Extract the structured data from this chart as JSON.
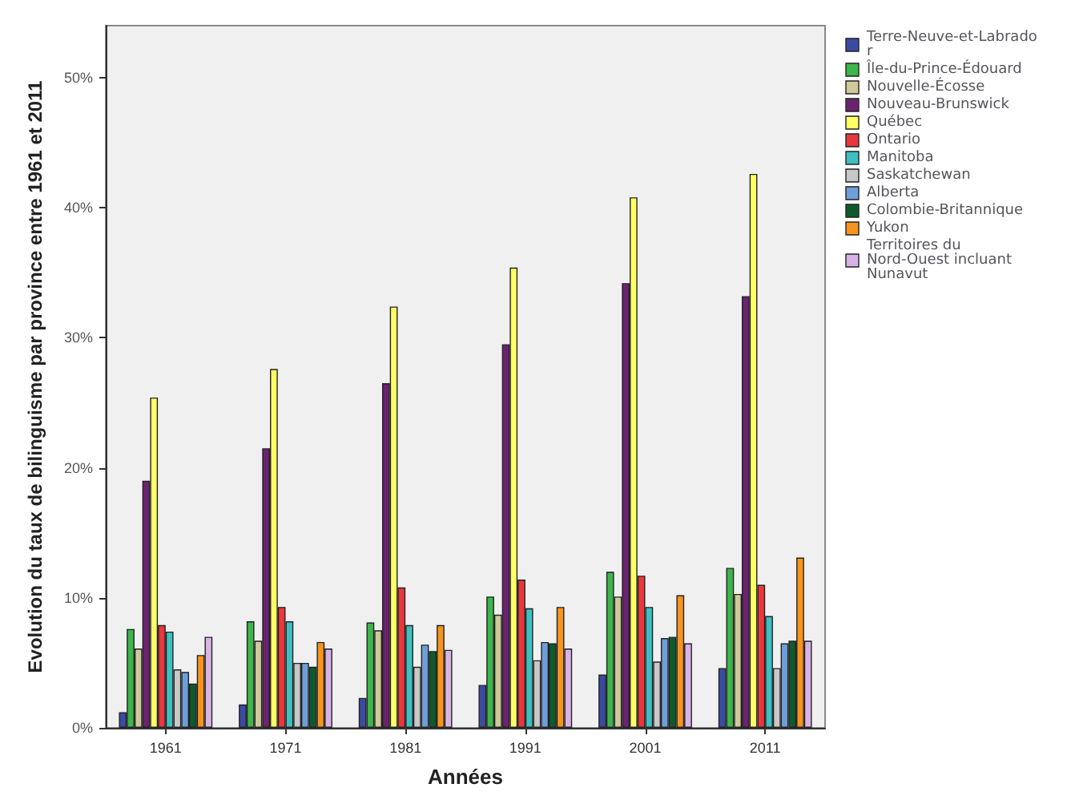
{
  "chart_data": {
    "type": "bar",
    "xlabel": "Années",
    "ylabel": "Evolution du taux de bilinguisme par province entre 1961 et 2011",
    "categories": [
      "1961",
      "1971",
      "1981",
      "1991",
      "2001",
      "2011"
    ],
    "series": [
      {
        "name": "Terre-Neuve-et-Labrador",
        "color": "#3b4ba3",
        "values": [
          1.2,
          1.8,
          2.3,
          3.3,
          4.1,
          4.6
        ]
      },
      {
        "name": "Île-du-Prince-Édouard",
        "color": "#3cb54a",
        "values": [
          7.6,
          8.2,
          8.1,
          10.1,
          12.0,
          12.3
        ]
      },
      {
        "name": "Nouvelle-Écosse",
        "color": "#cfc99a",
        "values": [
          6.1,
          6.7,
          7.5,
          8.7,
          10.1,
          10.3
        ]
      },
      {
        "name": "Nouveau-Brunswick",
        "color": "#6b2370",
        "values": [
          19.0,
          21.5,
          26.5,
          29.5,
          34.2,
          33.2
        ]
      },
      {
        "name": "Québec",
        "color": "#ffff66",
        "values": [
          25.4,
          27.6,
          32.4,
          35.4,
          40.8,
          42.6
        ]
      },
      {
        "name": "Ontario",
        "color": "#e8383d",
        "values": [
          7.9,
          9.3,
          10.8,
          11.4,
          11.7,
          11.0
        ]
      },
      {
        "name": "Manitoba",
        "color": "#40bfc0",
        "values": [
          7.4,
          8.2,
          7.9,
          9.2,
          9.3,
          8.6
        ]
      },
      {
        "name": "Saskatchewan",
        "color": "#c8c8c8",
        "values": [
          4.5,
          5.0,
          4.7,
          5.2,
          5.1,
          4.6
        ]
      },
      {
        "name": "Alberta",
        "color": "#6f9fd8",
        "values": [
          4.3,
          5.0,
          6.4,
          6.6,
          6.9,
          6.5
        ]
      },
      {
        "name": "Colombie-Britannique",
        "color": "#0f5a2d",
        "values": [
          3.4,
          4.7,
          5.9,
          6.5,
          7.0,
          6.7
        ]
      },
      {
        "name": "Yukon",
        "color": "#f7941d",
        "values": [
          5.6,
          6.6,
          7.9,
          9.3,
          10.2,
          13.1
        ]
      },
      {
        "name": "Territoires du Nord-Ouest incluant Nunavut",
        "color": "#d9b3e6",
        "values": [
          7.0,
          6.1,
          6.0,
          6.1,
          6.5,
          6.7
        ]
      }
    ],
    "ylim": [
      0,
      54
    ],
    "yticks": [
      {
        "value": 0,
        "label": "0%"
      },
      {
        "value": 10,
        "label": "10%"
      },
      {
        "value": 20,
        "label": "20%"
      },
      {
        "value": 30,
        "label": "30%"
      },
      {
        "value": 40,
        "label": "40%"
      },
      {
        "value": 50,
        "label": "50%"
      }
    ],
    "grid": false,
    "legend": "top right"
  }
}
